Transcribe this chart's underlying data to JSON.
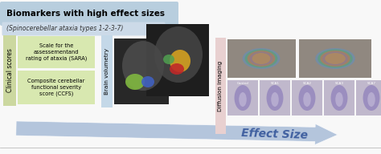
{
  "title": "Biomarkers with high effect sizes",
  "subtitle": "(Spinocerebellar ataxia types 1-2-3-7)",
  "title_bg": "#b8cede",
  "subtitle_bg": "#ccdae8",
  "clinical_label": "Clinical scores",
  "clinical_bg": "#ccd8a0",
  "box1_text": "Scale for the\nassessementand\nrating of ataxia (SARA)",
  "box2_text": "Composite cerebellar\nfunctional severity\nscore (CCFS)",
  "box_fill": "#d8e8b0",
  "brain_vol_label": "Brain volumetry",
  "brain_vol_bg": "#c4d8e8",
  "diffusion_label": "Diffusion imaging",
  "diffusion_bg": "#e8d0d0",
  "arrow_color": "#a8bcd8",
  "effect_size_text": "Effect Size",
  "white": "#ffffff",
  "page_bg": "#f8f8f8",
  "mri_bg": "#282828",
  "mri2_bg": "#1e1e1e",
  "blob_green": "#80b840",
  "blob_blue": "#4060c0",
  "blob_yellow": "#d4a020",
  "blob_red": "#c02828",
  "blob_green2": "#50a050",
  "diff_img_bg": "#b0a8c0",
  "diff_img_bg2": "#a8a0b8"
}
